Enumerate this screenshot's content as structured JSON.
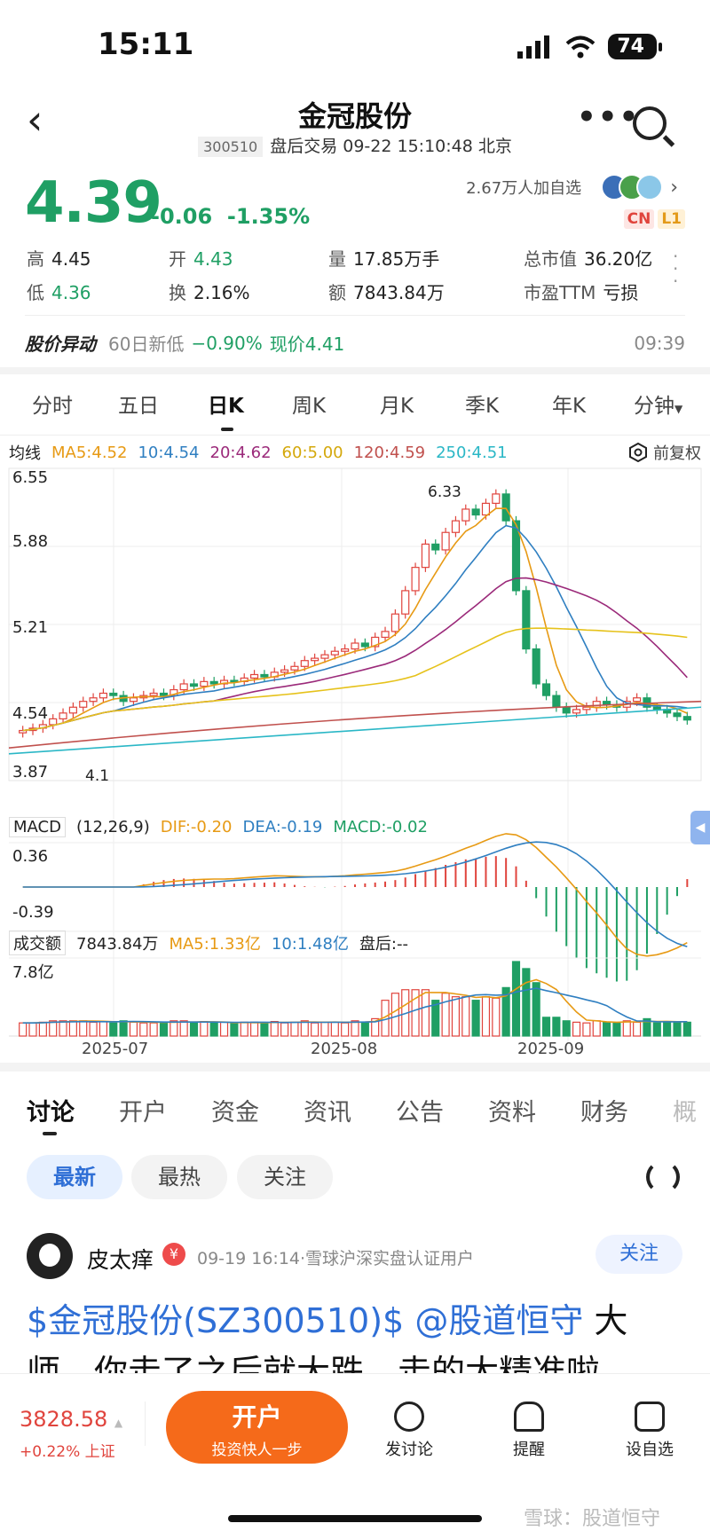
{
  "status_bar": {
    "time": "15:11",
    "battery": "74"
  },
  "header": {
    "title": "金冠股份",
    "code": "300510",
    "sub": "盘后交易 09-22 15:10:48 北京"
  },
  "price": {
    "value": "4.39",
    "change": "-0.06",
    "change_pct": "-1.35%",
    "followers": "2.67万人加自选",
    "badge_cn": "CN",
    "badge_l1": "L1"
  },
  "stats": {
    "high_label": "高",
    "high": "4.45",
    "open_label": "开",
    "open": "4.43",
    "vol_label": "量",
    "vol": "17.85万手",
    "mcap_label": "总市值",
    "mcap": "36.20亿",
    "low_label": "低",
    "low": "4.36",
    "turn_label": "换",
    "turn": "2.16%",
    "amt_label": "额",
    "amt": "7843.84万",
    "pe_label": "市盈TTM",
    "pe": "亏损"
  },
  "alert": {
    "title": "股价异动",
    "text": "60日新低",
    "pct": "−0.90%",
    "now": "现价4.41",
    "time": "09:39"
  },
  "kline_tabs": [
    "分时",
    "五日",
    "日K",
    "周K",
    "月K",
    "季K",
    "年K",
    "分钟"
  ],
  "ma": {
    "label": "均线",
    "ma5": "MA5:4.52",
    "ma10": "10:4.54",
    "ma20": "20:4.62",
    "ma60": "60:5.00",
    "ma120": "120:4.59",
    "ma250": "250:4.51",
    "fq": "前复权"
  },
  "colors": {
    "ma5": "#e79a14",
    "ma10": "#2f7fc1",
    "ma20": "#9b2a7a",
    "ma60": "#e6c21b",
    "ma120": "#c0504d",
    "ma250": "#2ab7c6",
    "up": "#e0443d",
    "down": "#1f9f64"
  },
  "axis": {
    "y": [
      "6.55",
      "5.88",
      "5.21",
      "4.54",
      "3.87"
    ],
    "months": [
      "2025-07",
      "2025-08",
      "2025-09"
    ],
    "high_mark": "6.33",
    "low_mark": "4.1"
  },
  "macd": {
    "label": "MACD",
    "params": "(12,26,9)",
    "dif": "DIF:-0.20",
    "dea": "DEA:-0.19",
    "macd": "MACD:-0.02",
    "ytop": "0.36",
    "ybot": "-0.39"
  },
  "volume": {
    "label": "成交额",
    "amt": "7843.84万",
    "ma5": "MA5:1.33亿",
    "ma10": "10:1.48亿",
    "after": "盘后:--",
    "ytop": "7.8亿"
  },
  "chart_data": {
    "type": "candlestick",
    "ylim": [
      3.87,
      6.55
    ],
    "closes": [
      4.3,
      4.32,
      4.35,
      4.4,
      4.45,
      4.5,
      4.55,
      4.58,
      4.62,
      4.6,
      4.55,
      4.58,
      4.6,
      4.62,
      4.6,
      4.65,
      4.7,
      4.68,
      4.72,
      4.7,
      4.73,
      4.72,
      4.75,
      4.78,
      4.76,
      4.8,
      4.82,
      4.85,
      4.9,
      4.92,
      4.95,
      4.98,
      5.0,
      5.05,
      5.02,
      5.1,
      5.15,
      5.3,
      5.5,
      5.7,
      5.9,
      5.85,
      6.0,
      6.1,
      6.2,
      6.15,
      6.25,
      6.33,
      6.1,
      5.5,
      5.0,
      4.7,
      4.6,
      4.5,
      4.45,
      4.48,
      4.5,
      4.55,
      4.52,
      4.5,
      4.55,
      4.58,
      4.5,
      4.48,
      4.45,
      4.42,
      4.39
    ]
  },
  "content_tabs": [
    "讨论",
    "开户",
    "资金",
    "资讯",
    "公告",
    "资料",
    "财务",
    "概"
  ],
  "filters": [
    "最新",
    "最热",
    "关注"
  ],
  "post": {
    "user": "皮太痒",
    "vip": "¥",
    "meta": "09-19 16:14·雪球沪深实盘认证用户",
    "follow": "关注",
    "link1": "$金冠股份(SZ300510)$",
    "link2": "@股道恒守",
    "text_a": " 大",
    "text_b": "师，你走了之后就大跌，走的太精准啦"
  },
  "bottom": {
    "index": "3828.58",
    "index_chg": "+0.22% 上证",
    "open_title": "开户",
    "open_sub": "投资快人一步",
    "nav": [
      "发讨论",
      "提醒",
      "设自选"
    ]
  },
  "watermark": "雪球：股道恒守"
}
